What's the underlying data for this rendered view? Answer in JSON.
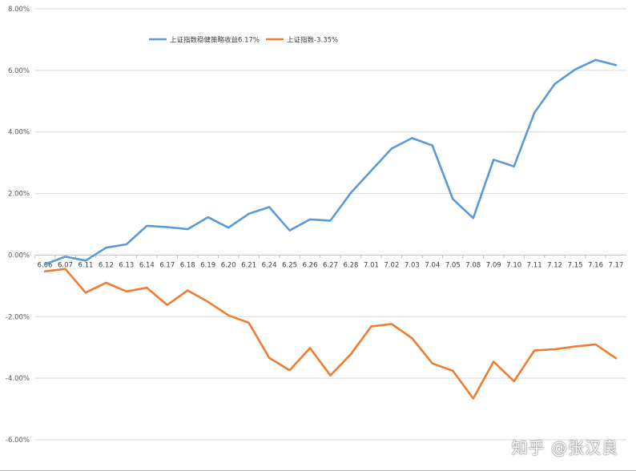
{
  "chart_data": {
    "type": "line",
    "categories": [
      "6.06",
      "6.07",
      "6.11",
      "6.12",
      "6.13",
      "6.14",
      "6.17",
      "6.18",
      "6.19",
      "6.20",
      "6.21",
      "6.24",
      "6.25",
      "6.26",
      "6.27",
      "6.28",
      "7.01",
      "7.02",
      "7.03",
      "7.04",
      "7.05",
      "7.08",
      "7.09",
      "7.10",
      "7.11",
      "7.12",
      "7.15",
      "7.16",
      "7.17"
    ],
    "y_ticks": [
      "8.00%",
      "6.00%",
      "4.00%",
      "2.00%",
      "0.00%",
      "-2.00%",
      "-4.00%",
      "-6.00%"
    ],
    "ylim": [
      -6,
      8
    ],
    "grid": true,
    "legend_position": "top-left",
    "series": [
      {
        "name": "上证指数稳健策略收益6.17%",
        "color": "#5b9bd5",
        "values": [
          -0.3,
          -0.05,
          -0.18,
          0.24,
          0.35,
          0.95,
          0.91,
          0.84,
          1.23,
          0.89,
          1.34,
          1.56,
          0.8,
          1.16,
          1.12,
          2.02,
          2.74,
          3.46,
          3.8,
          3.56,
          1.82,
          1.2,
          3.1,
          2.88,
          4.62,
          5.56,
          6.03,
          6.34,
          6.17
        ]
      },
      {
        "name": "上证指数-3.35%",
        "color": "#ed7d31",
        "values": [
          -0.53,
          -0.45,
          -1.22,
          -0.9,
          -1.18,
          -1.06,
          -1.62,
          -1.15,
          -1.52,
          -1.96,
          -2.2,
          -3.34,
          -3.74,
          -3.02,
          -3.91,
          -3.22,
          -2.32,
          -2.24,
          -2.7,
          -3.52,
          -3.76,
          -4.66,
          -3.46,
          -4.1,
          -3.1,
          -3.06,
          -2.97,
          -2.9,
          -3.35
        ]
      }
    ]
  },
  "watermark": "知乎 @张汉良"
}
